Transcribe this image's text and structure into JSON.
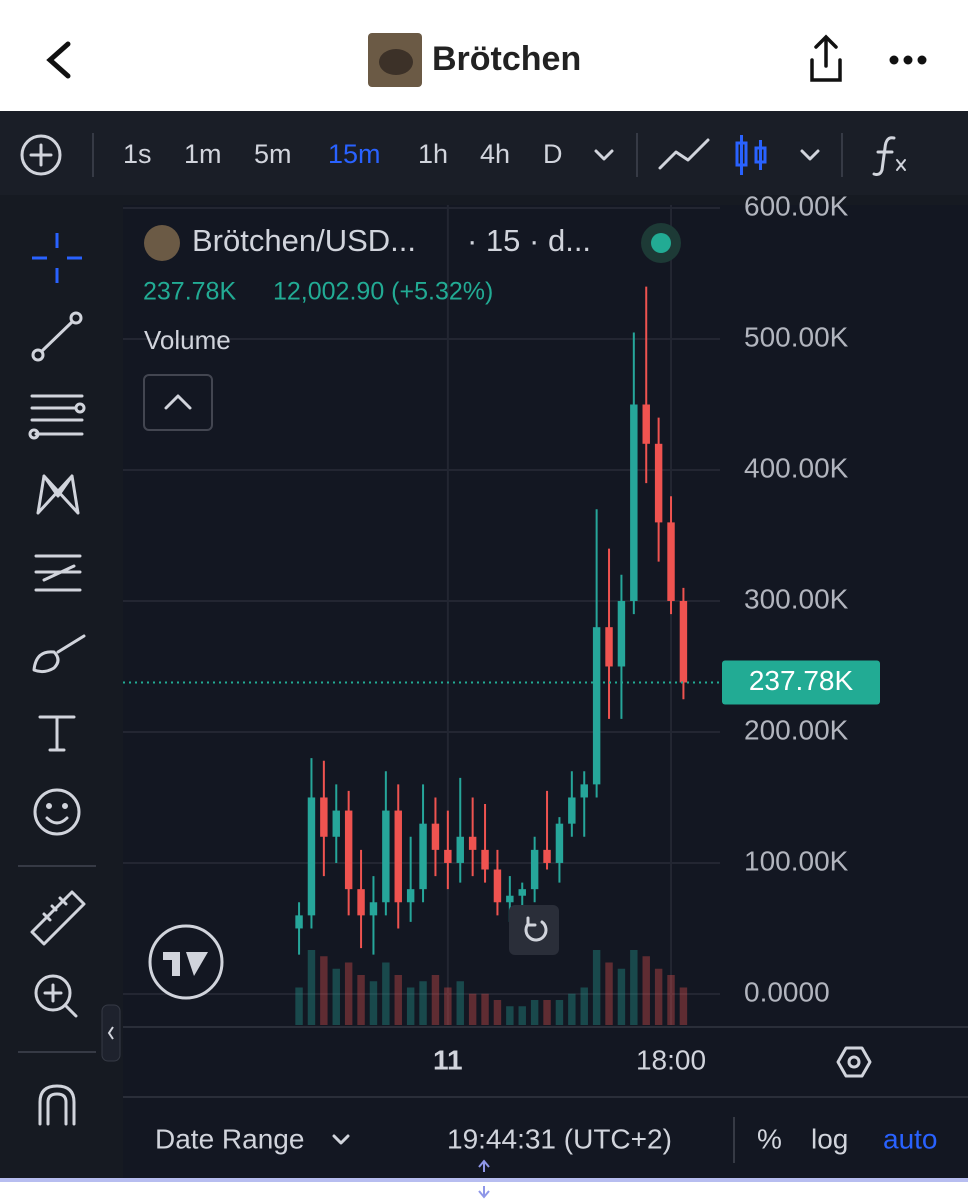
{
  "header": {
    "title": "Brötchen"
  },
  "toolbar": {
    "intervals": [
      "1s",
      "1m",
      "5m",
      "15m",
      "1h",
      "4h",
      "D"
    ],
    "active_interval": 3
  },
  "legend": {
    "symbol": "Brötchen/USD...",
    "meta": "· 15 · d...",
    "change": "12,002.90 (+5.32%)",
    "study": "Volume"
  },
  "chart_data": {
    "type": "candlestick",
    "x": [
      -12,
      -11,
      -10,
      -9,
      -8,
      -7,
      -6,
      -5,
      -4,
      -3,
      -2,
      -1,
      0,
      1,
      2,
      3,
      4,
      5,
      6,
      7,
      8,
      9,
      10,
      11,
      12,
      13,
      14,
      15,
      16,
      17,
      18,
      19
    ],
    "open": [
      50,
      60,
      150,
      120,
      140,
      80,
      60,
      70,
      140,
      70,
      80,
      130,
      110,
      100,
      120,
      110,
      95,
      70,
      75,
      80,
      110,
      100,
      130,
      150,
      160,
      280,
      250,
      300,
      450,
      420,
      360,
      300
    ],
    "high": [
      70,
      180,
      178,
      160,
      155,
      110,
      90,
      170,
      160,
      120,
      160,
      150,
      140,
      165,
      150,
      145,
      110,
      90,
      85,
      120,
      155,
      135,
      170,
      170,
      370,
      340,
      320,
      505,
      540,
      440,
      380,
      310
    ],
    "low": [
      30,
      50,
      90,
      100,
      60,
      35,
      30,
      60,
      50,
      55,
      70,
      90,
      80,
      85,
      90,
      85,
      60,
      55,
      60,
      70,
      95,
      85,
      120,
      120,
      150,
      210,
      210,
      290,
      390,
      330,
      290,
      225
    ],
    "close": [
      60,
      150,
      120,
      140,
      80,
      60,
      70,
      140,
      70,
      80,
      130,
      110,
      100,
      120,
      110,
      95,
      70,
      75,
      80,
      110,
      100,
      130,
      150,
      160,
      280,
      250,
      300,
      450,
      420,
      360,
      300,
      237.78
    ],
    "volume": [
      30,
      60,
      55,
      45,
      50,
      40,
      35,
      50,
      40,
      30,
      35,
      40,
      30,
      35,
      25,
      25,
      20,
      15,
      15,
      20,
      20,
      20,
      25,
      30,
      60,
      50,
      45,
      60,
      55,
      45,
      40,
      30
    ],
    "up_color": "#26a69a",
    "down_color": "#ef5350",
    "xlim": [
      -26.2,
      21.95
    ],
    "xticks": [
      {
        "value": 0,
        "label": "11"
      },
      {
        "value": 18,
        "label": "18:00"
      }
    ],
    "ylim": [
      -23.7,
      602.3
    ],
    "yticks": [
      {
        "value": 0,
        "label": "0.0000"
      },
      {
        "value": 100,
        "label": "100.00K"
      },
      {
        "value": 200,
        "label": "200.00K"
      },
      {
        "value": 300,
        "label": "300.00K"
      },
      {
        "value": 400,
        "label": "400.00K"
      },
      {
        "value": 500,
        "label": "500.00K"
      },
      {
        "value": 600,
        "label": "600.00K"
      }
    ],
    "last_price": {
      "value": 237.78,
      "label": "237.78K"
    },
    "grid": true
  },
  "footer": {
    "date_range": "Date Range",
    "time": "19:44:31 (UTC+2)",
    "options": [
      "%",
      "log",
      "auto"
    ]
  }
}
